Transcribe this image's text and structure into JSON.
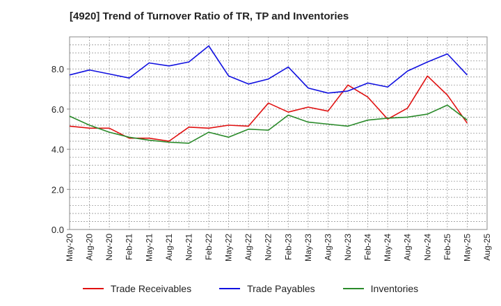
{
  "title": "[4920]  Trend of Turnover Ratio of TR, TP and Inventories",
  "chart_data": {
    "type": "line",
    "title": "[4920]  Trend of Turnover Ratio of TR, TP and Inventories",
    "xlabel": "",
    "ylabel": "",
    "ylim": [
      0,
      9.6
    ],
    "yticks": [
      "0.0",
      "2.0",
      "4.0",
      "6.0",
      "8.0"
    ],
    "grid": true,
    "legend_position": "bottom",
    "x_tick_labels": [
      "May-20",
      "Aug-20",
      "Nov-20",
      "Feb-21",
      "May-21",
      "Aug-21",
      "Nov-21",
      "Feb-22",
      "May-22",
      "Aug-22",
      "Nov-22",
      "Feb-23",
      "May-23",
      "Aug-23",
      "Nov-23",
      "Feb-24",
      "May-24",
      "Aug-24",
      "Nov-24",
      "Feb-25",
      "May-25",
      "Aug-25"
    ],
    "x": [
      "May-20",
      "Aug-20",
      "Nov-20",
      "Feb-21",
      "May-21",
      "Aug-21",
      "Nov-21",
      "Feb-22",
      "May-22",
      "Aug-22",
      "Nov-22",
      "Feb-23",
      "May-23",
      "Aug-23",
      "Nov-23",
      "Feb-24",
      "May-24",
      "Aug-24",
      "Nov-24",
      "Feb-25",
      "May-25"
    ],
    "series": [
      {
        "name": "Trade Receivables",
        "color": "#e01010",
        "values": [
          5.15,
          5.05,
          5.05,
          4.55,
          4.55,
          4.4,
          5.1,
          5.05,
          5.2,
          5.15,
          6.3,
          5.85,
          6.1,
          5.9,
          7.2,
          6.6,
          5.5,
          6.05,
          7.65,
          6.7,
          5.3
        ]
      },
      {
        "name": "Trade Payables",
        "color": "#1010e0",
        "values": [
          7.7,
          7.95,
          7.75,
          7.55,
          8.3,
          8.15,
          8.35,
          9.15,
          7.65,
          7.25,
          7.5,
          8.1,
          7.05,
          6.8,
          6.9,
          7.3,
          7.1,
          7.9,
          8.35,
          8.75,
          7.7
        ]
      },
      {
        "name": "Inventories",
        "color": "#2a8a2a",
        "values": [
          5.65,
          5.2,
          4.85,
          4.6,
          4.45,
          4.35,
          4.3,
          4.85,
          4.6,
          5.0,
          4.95,
          5.7,
          5.35,
          5.25,
          5.15,
          5.45,
          5.55,
          5.6,
          5.75,
          6.2,
          5.45
        ]
      }
    ]
  }
}
